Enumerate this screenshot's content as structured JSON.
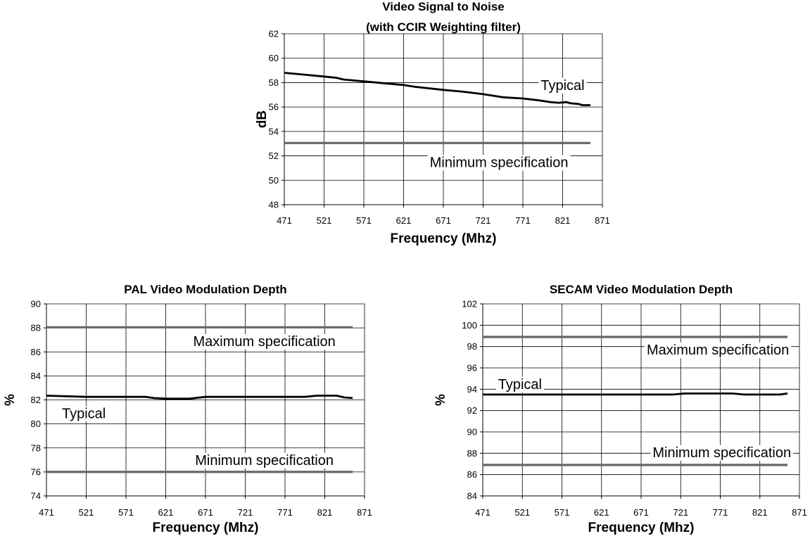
{
  "chart_data": [
    {
      "type": "line",
      "title": "Video Signal to Noise",
      "subtitle": "(with CCIR Weighting filter)",
      "xlabel": "Frequency (Mhz)",
      "ylabel": "dB",
      "xlim": [
        471,
        871
      ],
      "ylim": [
        48,
        62
      ],
      "xticks": [
        471,
        521,
        571,
        621,
        671,
        721,
        771,
        821,
        871
      ],
      "yticks": [
        48,
        50,
        52,
        54,
        56,
        58,
        60,
        62
      ],
      "grid": true,
      "series": [
        {
          "name": "Typical",
          "color": "#000000",
          "points": [
            [
              471,
              58.8
            ],
            [
              496,
              58.65
            ],
            [
              521,
              58.5
            ],
            [
              536,
              58.4
            ],
            [
              546,
              58.25
            ],
            [
              571,
              58.1
            ],
            [
              596,
              57.95
            ],
            [
              621,
              57.8
            ],
            [
              636,
              57.65
            ],
            [
              671,
              57.4
            ],
            [
              696,
              57.25
            ],
            [
              721,
              57.05
            ],
            [
              746,
              56.8
            ],
            [
              771,
              56.7
            ],
            [
              791,
              56.55
            ],
            [
              806,
              56.4
            ],
            [
              816,
              56.35
            ],
            [
              826,
              56.4
            ],
            [
              831,
              56.3
            ],
            [
              841,
              56.25
            ],
            [
              846,
              56.15
            ],
            [
              856,
              56.15
            ]
          ]
        },
        {
          "name": "Minimum specification",
          "color": "#666666",
          "points": [
            [
              471,
              53.05
            ],
            [
              856,
              53.05
            ]
          ]
        }
      ],
      "annotations": [
        {
          "text": "Typical",
          "x": 821,
          "y": 57.8
        },
        {
          "text": "Minimum specification",
          "x": 741,
          "y": 51.5
        }
      ]
    },
    {
      "type": "line",
      "title": "PAL Video Modulation Depth",
      "subtitle": "",
      "xlabel": "Frequency (Mhz)",
      "ylabel": "%",
      "xlim": [
        471,
        871
      ],
      "ylim": [
        74,
        90
      ],
      "xticks": [
        471,
        521,
        571,
        621,
        671,
        721,
        771,
        821,
        871
      ],
      "yticks": [
        74,
        76,
        78,
        80,
        82,
        84,
        86,
        88,
        90
      ],
      "grid": true,
      "series": [
        {
          "name": "Typical",
          "color": "#000000",
          "points": [
            [
              471,
              82.35
            ],
            [
              521,
              82.25
            ],
            [
              571,
              82.25
            ],
            [
              596,
              82.25
            ],
            [
              606,
              82.15
            ],
            [
              621,
              82.1
            ],
            [
              651,
              82.1
            ],
            [
              671,
              82.25
            ],
            [
              721,
              82.25
            ],
            [
              771,
              82.25
            ],
            [
              796,
              82.25
            ],
            [
              811,
              82.35
            ],
            [
              836,
              82.35
            ],
            [
              846,
              82.2
            ],
            [
              856,
              82.15
            ]
          ]
        },
        {
          "name": "Maximum specification",
          "color": "#666666",
          "points": [
            [
              471,
              88.05
            ],
            [
              856,
              88.05
            ]
          ]
        },
        {
          "name": "Minimum specification",
          "color": "#666666",
          "points": [
            [
              471,
              76.0
            ],
            [
              856,
              76.0
            ]
          ]
        }
      ],
      "annotations": [
        {
          "text": "Maximum specification",
          "x": 745,
          "y": 86.9
        },
        {
          "text": "Typical",
          "x": 518,
          "y": 80.9
        },
        {
          "text": "Minimum specification",
          "x": 745,
          "y": 77.0
        }
      ]
    },
    {
      "type": "line",
      "title": "SECAM Video Modulation Depth",
      "subtitle": "",
      "xlabel": "Frequency (Mhz)",
      "ylabel": "%",
      "xlim": [
        471,
        871
      ],
      "ylim": [
        84,
        102
      ],
      "xticks": [
        471,
        521,
        571,
        621,
        671,
        721,
        771,
        821,
        871
      ],
      "yticks": [
        84,
        86,
        88,
        90,
        92,
        94,
        96,
        98,
        100,
        102
      ],
      "grid": true,
      "series": [
        {
          "name": "Typical",
          "color": "#000000",
          "points": [
            [
              471,
              93.5
            ],
            [
              521,
              93.5
            ],
            [
              571,
              93.5
            ],
            [
              621,
              93.5
            ],
            [
              671,
              93.5
            ],
            [
              711,
              93.5
            ],
            [
              726,
              93.6
            ],
            [
              771,
              93.6
            ],
            [
              786,
              93.6
            ],
            [
              801,
              93.5
            ],
            [
              846,
              93.5
            ],
            [
              856,
              93.6
            ]
          ]
        },
        {
          "name": "Maximum specification",
          "color": "#666666",
          "points": [
            [
              471,
              98.9
            ],
            [
              856,
              98.9
            ]
          ]
        },
        {
          "name": "Minimum specification",
          "color": "#666666",
          "points": [
            [
              471,
              86.9
            ],
            [
              856,
              86.9
            ]
          ]
        }
      ],
      "annotations": [
        {
          "text": "Maximum specification",
          "x": 768,
          "y": 97.7
        },
        {
          "text": "Typical",
          "x": 518,
          "y": 94.5
        },
        {
          "text": "Minimum specification",
          "x": 773,
          "y": 88.1
        }
      ]
    }
  ]
}
